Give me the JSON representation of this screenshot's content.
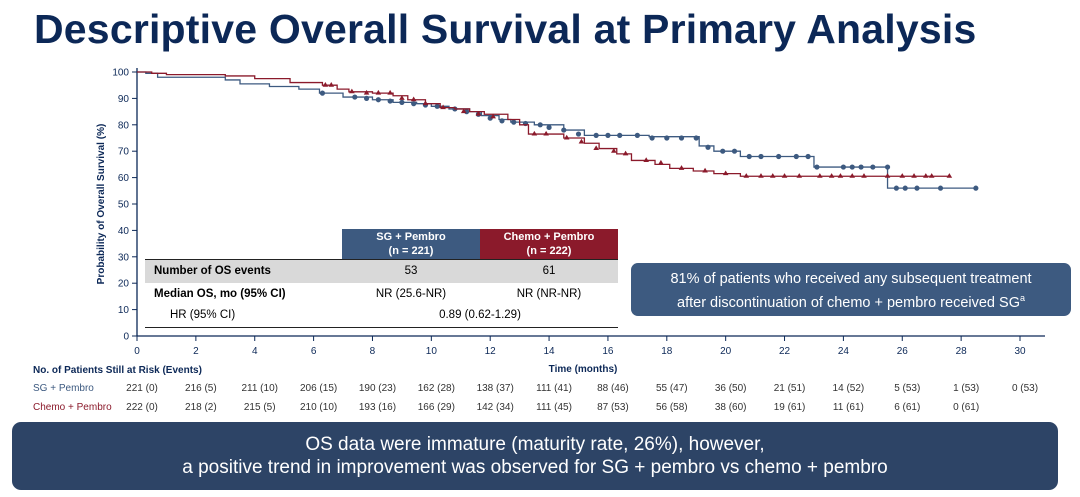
{
  "title": "Descriptive Overall Survival at Primary Analysis",
  "chart_data": {
    "type": "line",
    "subtype": "kaplan-meier step",
    "xlabel": "Time (months)",
    "ylabel": "Probability of Overall Survival (%)",
    "xlim": [
      0,
      30
    ],
    "ylim": [
      0,
      100
    ],
    "xticks": [
      0,
      2,
      4,
      6,
      8,
      10,
      12,
      14,
      16,
      18,
      20,
      22,
      24,
      26,
      28,
      30
    ],
    "yticks": [
      0,
      10,
      20,
      30,
      40,
      50,
      60,
      70,
      80,
      90,
      100
    ],
    "grid": false,
    "series": [
      {
        "name": "SG + Pembro",
        "color": "#3d5a80",
        "marker": "circle",
        "steps": [
          [
            0,
            100
          ],
          [
            0.3,
            99.5
          ],
          [
            0.7,
            98
          ],
          [
            3,
            97
          ],
          [
            3.5,
            95.5
          ],
          [
            4.5,
            94.5
          ],
          [
            5.5,
            93.5
          ],
          [
            6.2,
            92
          ],
          [
            7,
            90.5
          ],
          [
            8,
            89.5
          ],
          [
            8.7,
            88.5
          ],
          [
            9.5,
            88
          ],
          [
            10,
            87
          ],
          [
            10.6,
            86
          ],
          [
            11.3,
            85
          ],
          [
            11.7,
            83.5
          ],
          [
            12.3,
            82
          ],
          [
            12.7,
            81
          ],
          [
            13.5,
            80
          ],
          [
            14.5,
            78
          ],
          [
            15.2,
            76
          ],
          [
            17.4,
            75.5
          ],
          [
            19.1,
            72
          ],
          [
            19.6,
            70
          ],
          [
            20.5,
            68
          ],
          [
            23,
            64
          ],
          [
            25.5,
            56
          ],
          [
            28.5,
            56
          ]
        ],
        "censored": [
          [
            6.3,
            92
          ],
          [
            7.4,
            90.5
          ],
          [
            7.8,
            90
          ],
          [
            8.2,
            89.5
          ],
          [
            8.6,
            89
          ],
          [
            9.0,
            88.5
          ],
          [
            9.4,
            88
          ],
          [
            9.8,
            87.5
          ],
          [
            10.2,
            87
          ],
          [
            10.8,
            86
          ],
          [
            11.2,
            85
          ],
          [
            11.6,
            84
          ],
          [
            12.0,
            82.5
          ],
          [
            12.4,
            81.5
          ],
          [
            12.8,
            81
          ],
          [
            13.2,
            80.5
          ],
          [
            13.7,
            80
          ],
          [
            14.0,
            79
          ],
          [
            14.5,
            78
          ],
          [
            15.0,
            76.5
          ],
          [
            15.6,
            76
          ],
          [
            16.0,
            76
          ],
          [
            16.4,
            76
          ],
          [
            17.0,
            76
          ],
          [
            17.5,
            75
          ],
          [
            18.0,
            75
          ],
          [
            18.5,
            75
          ],
          [
            19.0,
            75
          ],
          [
            19.4,
            71.5
          ],
          [
            19.9,
            70
          ],
          [
            20.3,
            70
          ],
          [
            20.8,
            68
          ],
          [
            21.2,
            68
          ],
          [
            21.8,
            68
          ],
          [
            22.4,
            68
          ],
          [
            22.8,
            68
          ],
          [
            23.1,
            64
          ],
          [
            24.0,
            64
          ],
          [
            24.3,
            64
          ],
          [
            24.6,
            64
          ],
          [
            25.0,
            64
          ],
          [
            25.5,
            64
          ],
          [
            25.8,
            56
          ],
          [
            26.1,
            56
          ],
          [
            26.5,
            56
          ],
          [
            27.3,
            56
          ],
          [
            28.5,
            56
          ]
        ]
      },
      {
        "name": "Chemo + Pembro",
        "color": "#8b1a2b",
        "marker": "triangle",
        "steps": [
          [
            0,
            100
          ],
          [
            0.5,
            99.5
          ],
          [
            1,
            99
          ],
          [
            3,
            98.5
          ],
          [
            4,
            97.5
          ],
          [
            5.2,
            96
          ],
          [
            6.3,
            95
          ],
          [
            6.8,
            93.5
          ],
          [
            7.2,
            92.5
          ],
          [
            8,
            92
          ],
          [
            8.7,
            91
          ],
          [
            9.2,
            89.5
          ],
          [
            9.8,
            88
          ],
          [
            10.3,
            86.5
          ],
          [
            10.8,
            86
          ],
          [
            11.3,
            85
          ],
          [
            11.8,
            84
          ],
          [
            12.6,
            82
          ],
          [
            13,
            80
          ],
          [
            13.3,
            76.5
          ],
          [
            14.5,
            75
          ],
          [
            15.2,
            73
          ],
          [
            15.7,
            71
          ],
          [
            16.3,
            69
          ],
          [
            16.8,
            66.5
          ],
          [
            17.6,
            65
          ],
          [
            18.1,
            63.5
          ],
          [
            18.9,
            62.5
          ],
          [
            19.6,
            61.5
          ],
          [
            20.5,
            60.5
          ],
          [
            27.6,
            60.5
          ]
        ],
        "censored": [
          [
            6.4,
            95
          ],
          [
            6.6,
            95
          ],
          [
            7.3,
            92.5
          ],
          [
            7.8,
            92
          ],
          [
            8.2,
            92
          ],
          [
            8.6,
            92
          ],
          [
            9.0,
            90
          ],
          [
            9.4,
            89.5
          ],
          [
            9.8,
            88
          ],
          [
            10.4,
            86.5
          ],
          [
            11.1,
            85
          ],
          [
            11.6,
            84
          ],
          [
            12.1,
            83
          ],
          [
            13.5,
            76.5
          ],
          [
            13.9,
            76.5
          ],
          [
            14.6,
            75
          ],
          [
            15.1,
            73.5
          ],
          [
            15.6,
            71
          ],
          [
            16.2,
            70
          ],
          [
            16.6,
            69
          ],
          [
            17.3,
            66.5
          ],
          [
            17.8,
            65.5
          ],
          [
            18.5,
            63.5
          ],
          [
            19.3,
            62.5
          ],
          [
            20.0,
            61.5
          ],
          [
            20.7,
            60.5
          ],
          [
            21.2,
            60.5
          ],
          [
            21.6,
            60.5
          ],
          [
            22.0,
            60.5
          ],
          [
            22.5,
            60.5
          ],
          [
            23.2,
            60.5
          ],
          [
            23.6,
            60.5
          ],
          [
            23.9,
            60.5
          ],
          [
            24.3,
            60.5
          ],
          [
            24.7,
            60.5
          ],
          [
            25.5,
            60.5
          ],
          [
            26.0,
            60.5
          ],
          [
            26.4,
            60.5
          ],
          [
            26.8,
            60.5
          ],
          [
            27.0,
            60.5
          ],
          [
            27.6,
            60.5
          ]
        ]
      }
    ]
  },
  "summary_table": {
    "columns": [
      "SG + Pembro\n(n = 221)",
      "Chemo + Pembro\n(n = 222)"
    ],
    "col1_line1": "SG + Pembro",
    "col1_line2": "(n = 221)",
    "col2_line1": "Chemo + Pembro",
    "col2_line2": "(n = 222)",
    "rows": [
      {
        "label": "Number of OS events",
        "sg": "53",
        "chemo": "61"
      },
      {
        "label": "Median OS, mo (95% CI)",
        "sg": "NR (25.6-NR)",
        "chemo": "NR (NR-NR)"
      },
      {
        "label": "HR (95% CI)",
        "combined": "0.89 (0.62-1.29)"
      }
    ]
  },
  "callout": {
    "text": "81% of patients who received any subsequent treatment after discontinuation of chemo + pembro received SG",
    "line1": "81% of patients who received any subsequent treatment",
    "line2": "after discontinuation of chemo + pembro received SG",
    "superscript": "a"
  },
  "risk_table": {
    "title": "No. of Patients Still at Risk (Events)",
    "rows": [
      {
        "label": "SG + Pembro",
        "values": [
          "221 (0)",
          "216 (5)",
          "211 (10)",
          "206 (15)",
          "190 (23)",
          "162 (28)",
          "138 (37)",
          "111 (41)",
          "88 (46)",
          "55 (47)",
          "36 (50)",
          "21 (51)",
          "14 (52)",
          "5 (53)",
          "1 (53)",
          "0 (53)"
        ]
      },
      {
        "label": "Chemo + Pembro",
        "values": [
          "222 (0)",
          "218 (2)",
          "215 (5)",
          "210 (10)",
          "193 (16)",
          "166 (29)",
          "142 (34)",
          "111 (45)",
          "87 (53)",
          "56 (58)",
          "38 (60)",
          "19 (61)",
          "11 (61)",
          "6 (61)",
          "0 (61)"
        ]
      }
    ]
  },
  "banner": {
    "line1": "OS data were immature (maturity rate, 26%), however,",
    "line2": "a positive trend in improvement was observed for SG + pembro vs chemo + pembro"
  }
}
